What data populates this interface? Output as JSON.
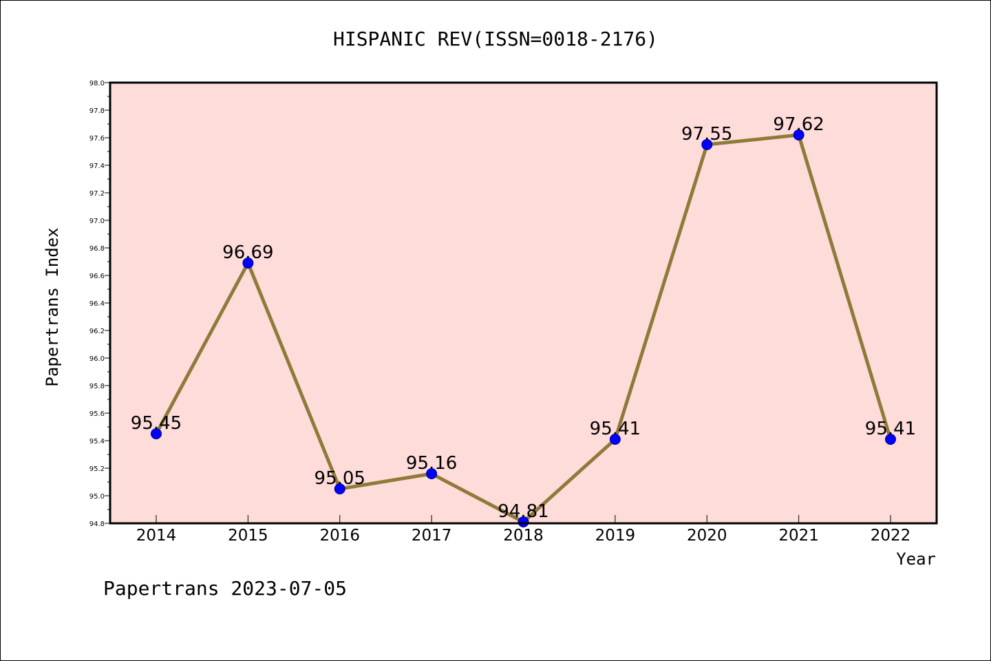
{
  "chart_data": {
    "type": "line",
    "title": "HISPANIC REV(ISSN=0018-2176)",
    "xlabel": "Year",
    "ylabel": "Papertrans Index",
    "categories": [
      "2014",
      "2015",
      "2016",
      "2017",
      "2018",
      "2019",
      "2020",
      "2021",
      "2022"
    ],
    "values": [
      95.45,
      96.69,
      95.05,
      95.16,
      94.81,
      95.41,
      97.55,
      97.62,
      95.41
    ],
    "data_labels": [
      "95.45",
      "96.69",
      "95.05",
      "95.16",
      "94.81",
      "95.41",
      "97.55",
      "97.62",
      "95.41"
    ],
    "ylim": [
      94.8,
      98.0
    ],
    "y_ticks": [
      "94.8",
      "95.0",
      "95.2",
      "95.4",
      "95.6",
      "95.8",
      "96.0",
      "96.2",
      "96.4",
      "96.6",
      "96.8",
      "97.0",
      "97.2",
      "97.4",
      "97.6",
      "97.8",
      "98.0"
    ],
    "grid": false,
    "legend": "none",
    "colors": {
      "plot_background": "#fddcda",
      "line": "#8f7a3a",
      "marker": "#0000ff",
      "marker_edge": "#00008b"
    }
  },
  "footer": "Papertrans 2023-07-05"
}
